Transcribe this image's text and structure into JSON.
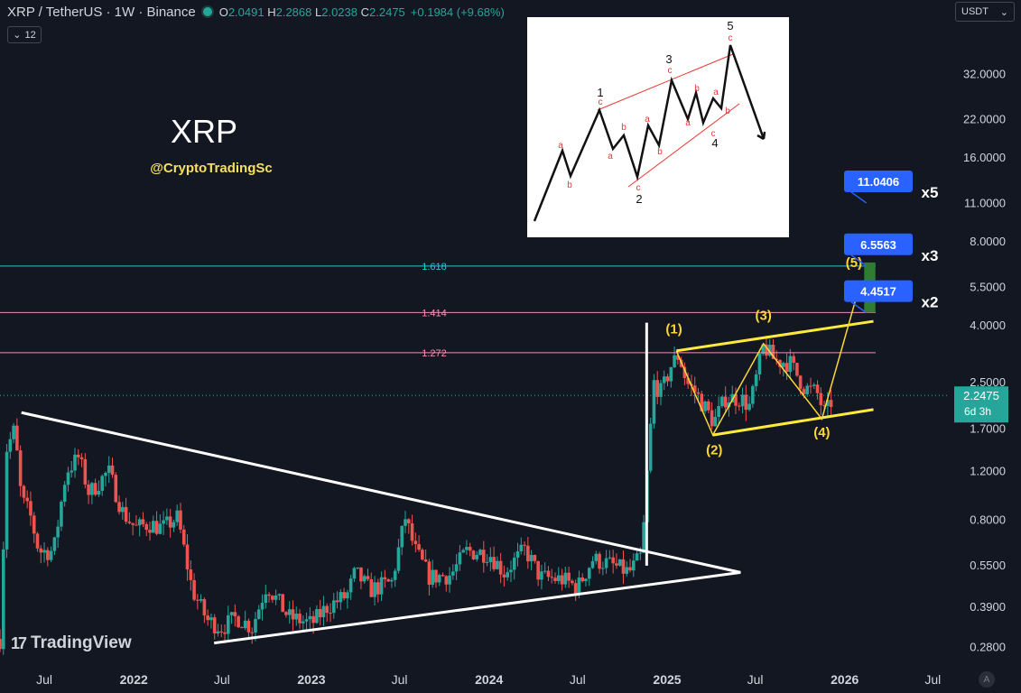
{
  "header": {
    "symbol": "XRP / TetherUS · 1W · Binance",
    "open_label": "O",
    "open": "2.0491",
    "high_label": "H",
    "high": "2.2868",
    "low_label": "L",
    "low": "2.0238",
    "close_label": "C",
    "close": "2.2475",
    "change": "+0.1984 (+9.68%)",
    "interval_badge": "12",
    "currency": "USDT"
  },
  "brand": {
    "title": "XRP",
    "handle": "@CryptoTradingSc",
    "watermark": "TradingView",
    "auto_button": "A"
  },
  "colors": {
    "up": "#26a69a",
    "down": "#ef5350",
    "background": "#131722",
    "target_box": "#2962ff",
    "accent_yellow": "#ffeb3b"
  },
  "chart_data": {
    "type": "candlestick",
    "y_scale": "log",
    "ylim": [
      0.24,
      48
    ],
    "x_range": [
      "2021-04-01",
      "2026-08-01"
    ],
    "y_ticks": [
      {
        "value": 32,
        "label": "32.0000"
      },
      {
        "value": 22,
        "label": "22.0000"
      },
      {
        "value": 16,
        "label": "16.0000"
      },
      {
        "value": 11,
        "label": "11.0000"
      },
      {
        "value": 8,
        "label": "8.0000"
      },
      {
        "value": 5.5,
        "label": "5.5000"
      },
      {
        "value": 4,
        "label": "4.0000"
      },
      {
        "value": 2.5,
        "label": "2.5000"
      },
      {
        "value": 1.7,
        "label": "1.7000"
      },
      {
        "value": 1.2,
        "label": "1.2000"
      },
      {
        "value": 0.8,
        "label": "0.8000"
      },
      {
        "value": 0.55,
        "label": "0.5500"
      },
      {
        "value": 0.39,
        "label": "0.3900"
      },
      {
        "value": 0.28,
        "label": "0.2800"
      }
    ],
    "x_ticks": [
      {
        "date": "2021-07-01",
        "label": "Jul",
        "bold": false
      },
      {
        "date": "2022-01-01",
        "label": "2022",
        "bold": true
      },
      {
        "date": "2022-07-01",
        "label": "Jul",
        "bold": false
      },
      {
        "date": "2023-01-01",
        "label": "2023",
        "bold": true
      },
      {
        "date": "2023-07-01",
        "label": "Jul",
        "bold": false
      },
      {
        "date": "2024-01-01",
        "label": "2024",
        "bold": true
      },
      {
        "date": "2024-07-01",
        "label": "Jul",
        "bold": false
      },
      {
        "date": "2025-01-01",
        "label": "2025",
        "bold": true
      },
      {
        "date": "2025-07-01",
        "label": "Jul",
        "bold": false
      },
      {
        "date": "2026-01-01",
        "label": "2026",
        "bold": true
      },
      {
        "date": "2026-07-01",
        "label": "Jul",
        "bold": false
      }
    ],
    "price_path": [
      [
        "2021-04-01",
        0.3
      ],
      [
        "2021-04-15",
        1.45
      ],
      [
        "2021-05-01",
        1.7
      ],
      [
        "2021-05-15",
        0.95
      ],
      [
        "2021-06-01",
        0.85
      ],
      [
        "2021-06-20",
        0.62
      ],
      [
        "2021-07-20",
        0.62
      ],
      [
        "2021-08-15",
        1.2
      ],
      [
        "2021-09-10",
        1.35
      ],
      [
        "2021-10-01",
        1.0
      ],
      [
        "2021-11-10",
        1.2
      ],
      [
        "2021-12-10",
        0.85
      ],
      [
        "2022-01-05",
        0.75
      ],
      [
        "2022-02-01",
        0.78
      ],
      [
        "2022-03-01",
        0.75
      ],
      [
        "2022-04-01",
        0.82
      ],
      [
        "2022-05-01",
        0.45
      ],
      [
        "2022-06-01",
        0.35
      ],
      [
        "2022-07-01",
        0.33
      ],
      [
        "2022-08-01",
        0.36
      ],
      [
        "2022-09-01",
        0.33
      ],
      [
        "2022-10-01",
        0.47
      ],
      [
        "2022-11-15",
        0.36
      ],
      [
        "2023-01-01",
        0.34
      ],
      [
        "2023-02-01",
        0.39
      ],
      [
        "2023-03-15",
        0.43
      ],
      [
        "2023-04-01",
        0.52
      ],
      [
        "2023-05-01",
        0.45
      ],
      [
        "2023-06-15",
        0.48
      ],
      [
        "2023-07-13",
        0.82
      ],
      [
        "2023-08-01",
        0.63
      ],
      [
        "2023-09-01",
        0.5
      ],
      [
        "2023-10-15",
        0.51
      ],
      [
        "2023-11-15",
        0.62
      ],
      [
        "2024-01-01",
        0.61
      ],
      [
        "2024-02-01",
        0.52
      ],
      [
        "2024-03-15",
        0.63
      ],
      [
        "2024-04-15",
        0.5
      ],
      [
        "2024-06-01",
        0.49
      ],
      [
        "2024-07-01",
        0.46
      ],
      [
        "2024-08-01",
        0.58
      ],
      [
        "2024-09-01",
        0.56
      ],
      [
        "2024-10-15",
        0.52
      ],
      [
        "2024-11-10",
        0.6
      ],
      [
        "2024-11-24",
        1.4
      ],
      [
        "2024-12-05",
        2.5
      ],
      [
        "2024-12-20",
        2.3
      ],
      [
        "2025-01-10",
        2.9
      ],
      [
        "2025-01-25",
        3.15
      ],
      [
        "2025-02-10",
        2.5
      ],
      [
        "2025-03-01",
        2.3
      ],
      [
        "2025-04-07",
        1.8
      ],
      [
        "2025-05-01",
        2.2
      ],
      [
        "2025-06-01",
        2.2
      ],
      [
        "2025-06-20",
        2.05
      ],
      [
        "2025-07-18",
        3.4
      ],
      [
        "2025-08-10",
        3.0
      ],
      [
        "2025-09-10",
        2.95
      ],
      [
        "2025-10-10",
        2.4
      ],
      [
        "2025-11-05",
        2.3
      ],
      [
        "2025-11-20",
        1.95
      ],
      [
        "2025-12-01",
        2.05
      ],
      [
        "2025-12-08",
        2.2475
      ]
    ],
    "fib_levels": [
      {
        "label": "1.618",
        "price": 6.55,
        "color": "#26c6da"
      },
      {
        "label": "1.414",
        "price": 4.46,
        "color": "#f48fb1"
      },
      {
        "label": "1.272",
        "price": 3.2,
        "color": "#f48fb1"
      }
    ],
    "triangle_lines": [
      [
        [
          "2021-05-15",
          1.95
        ],
        [
          "2025-06-01",
          0.52
        ]
      ],
      [
        [
          "2022-06-15",
          0.29
        ],
        [
          "2025-06-01",
          0.52
        ]
      ]
    ],
    "white_vertical": {
      "date": "2024-11-20",
      "from": 0.55,
      "to": 4.1
    },
    "channel_lines": [
      [
        [
          "2025-01-20",
          3.25
        ],
        [
          "2026-03-01",
          4.15
        ]
      ],
      [
        [
          "2025-04-05",
          1.62
        ],
        [
          "2026-03-01",
          2.0
        ]
      ]
    ],
    "wave_path": [
      [
        "2025-01-20",
        3.25
      ],
      [
        "2025-04-05",
        1.62
      ],
      [
        "2025-07-18",
        3.45
      ],
      [
        "2025-11-15",
        1.85
      ],
      [
        "2026-02-01",
        5.6
      ]
    ],
    "wave_labels": [
      {
        "label": "(1)",
        "date": "2025-01-15",
        "price": 3.75
      },
      {
        "label": "(2)",
        "date": "2025-04-08",
        "price": 1.38
      },
      {
        "label": "(3)",
        "date": "2025-07-18",
        "price": 4.2
      },
      {
        "label": "(4)",
        "date": "2025-11-15",
        "price": 1.6
      },
      {
        "label": "(5)",
        "date": "2026-01-20",
        "price": 6.5
      }
    ],
    "target_box": {
      "x0": "2026-02-10",
      "x1": "2026-03-05",
      "low": 4.46,
      "high": 6.75,
      "color": "#2e7d32"
    },
    "targets": [
      {
        "value": "11.0406",
        "multiplier": "x5",
        "price": 11.04
      },
      {
        "value": "6.5563",
        "multiplier": "x3",
        "price": 6.5563
      },
      {
        "value": "4.4517",
        "multiplier": "x2",
        "price": 4.4517
      }
    ],
    "last_price": {
      "value": "2.2475",
      "countdown": "6d 3h"
    }
  },
  "inset_diagram": {
    "numbers": [
      "1",
      "2",
      "3",
      "4",
      "5"
    ],
    "sub_labels": [
      "a",
      "b",
      "c"
    ]
  }
}
